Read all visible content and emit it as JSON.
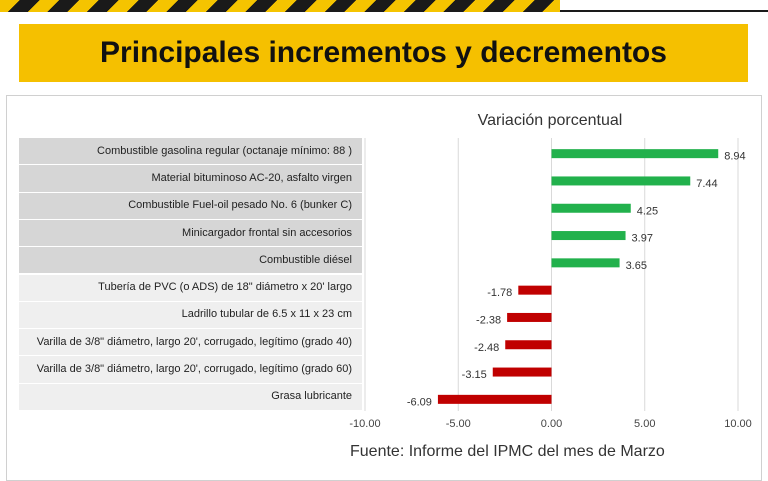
{
  "header": {
    "title": "Principales incrementos y decrementos"
  },
  "footer": {
    "source": "Fuente: Informe del IPMC del mes de Marzo"
  },
  "chart_data": {
    "type": "bar",
    "orientation": "horizontal",
    "title": "Variación porcentual",
    "categories": [
      "Combustible gasolina regular (octanaje mínimo: 88 )",
      "Material bituminoso AC-20, asfalto virgen",
      "Combustible Fuel-oil pesado No. 6 (bunker C)",
      "Minicargador frontal sin accesorios",
      "Combustible diésel",
      "Tubería de PVC (o ADS) de 18\" diámetro x 20' largo",
      "Ladrillo tubular de 6.5 x 11 x 23 cm",
      "Varilla de 3/8\" diámetro, largo 20', corrugado, legítimo (grado 40)",
      "Varilla de 3/8\" diámetro, largo 20', corrugado, legítimo (grado 60)",
      "Grasa lubricante"
    ],
    "values": [
      8.94,
      7.44,
      4.25,
      3.97,
      3.65,
      -1.78,
      -2.38,
      -2.48,
      -3.15,
      -6.09
    ],
    "value_labels": [
      "8.94",
      "7.44",
      "4.25",
      "3.97",
      "3.65",
      "-1.78",
      "-2.38",
      "-2.48",
      "-3.15",
      "-6.09"
    ],
    "xlim": [
      -10,
      10
    ],
    "xticks": [
      -10,
      -5,
      0,
      5,
      10
    ],
    "xtick_labels": [
      "-10.00",
      "-5.00",
      "0.00",
      "5.00",
      "10.00"
    ],
    "grid": "vertical",
    "colors": {
      "positive": "#22b14c",
      "negative": "#c00000"
    }
  }
}
